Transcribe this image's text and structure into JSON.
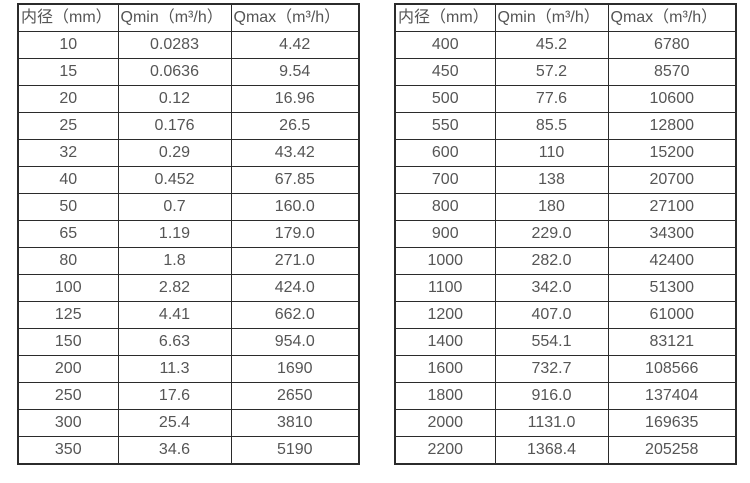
{
  "tables": [
    {
      "name": "flow-table-left",
      "header": [
        "内径（mm）",
        "Qmin（m³/h）",
        "Qmax（m³/h）"
      ],
      "rows": [
        [
          "10",
          "0.0283",
          "4.42"
        ],
        [
          "15",
          "0.0636",
          "9.54"
        ],
        [
          "20",
          "0.12",
          "16.96"
        ],
        [
          "25",
          "0.176",
          "26.5"
        ],
        [
          "32",
          "0.29",
          "43.42"
        ],
        [
          "40",
          "0.452",
          "67.85"
        ],
        [
          "50",
          "0.7",
          "160.0"
        ],
        [
          "65",
          "1.19",
          "179.0"
        ],
        [
          "80",
          "1.8",
          "271.0"
        ],
        [
          "100",
          "2.82",
          "424.0"
        ],
        [
          "125",
          "4.41",
          "662.0"
        ],
        [
          "150",
          "6.63",
          "954.0"
        ],
        [
          "200",
          "11.3",
          "1690"
        ],
        [
          "250",
          "17.6",
          "2650"
        ],
        [
          "300",
          "25.4",
          "3810"
        ],
        [
          "350",
          "34.6",
          "5190"
        ]
      ]
    },
    {
      "name": "flow-table-right",
      "header": [
        "内径（mm）",
        "Qmin（m³/h）",
        "Qmax（m³/h）"
      ],
      "rows": [
        [
          "400",
          "45.2",
          "6780"
        ],
        [
          "450",
          "57.2",
          "8570"
        ],
        [
          "500",
          "77.6",
          "10600"
        ],
        [
          "550",
          "85.5",
          "12800"
        ],
        [
          "600",
          "110",
          "15200"
        ],
        [
          "700",
          "138",
          "20700"
        ],
        [
          "800",
          "180",
          "27100"
        ],
        [
          "900",
          "229.0",
          "34300"
        ],
        [
          "1000",
          "282.0",
          "42400"
        ],
        [
          "1100",
          "342.0",
          "51300"
        ],
        [
          "1200",
          "407.0",
          "61000"
        ],
        [
          "1400",
          "554.1",
          "83121"
        ],
        [
          "1600",
          "732.7",
          "108566"
        ],
        [
          "1800",
          "916.0",
          "137404"
        ],
        [
          "2000",
          "1131.0",
          "169635"
        ],
        [
          "2200",
          "1368.4",
          "205258"
        ]
      ]
    }
  ]
}
